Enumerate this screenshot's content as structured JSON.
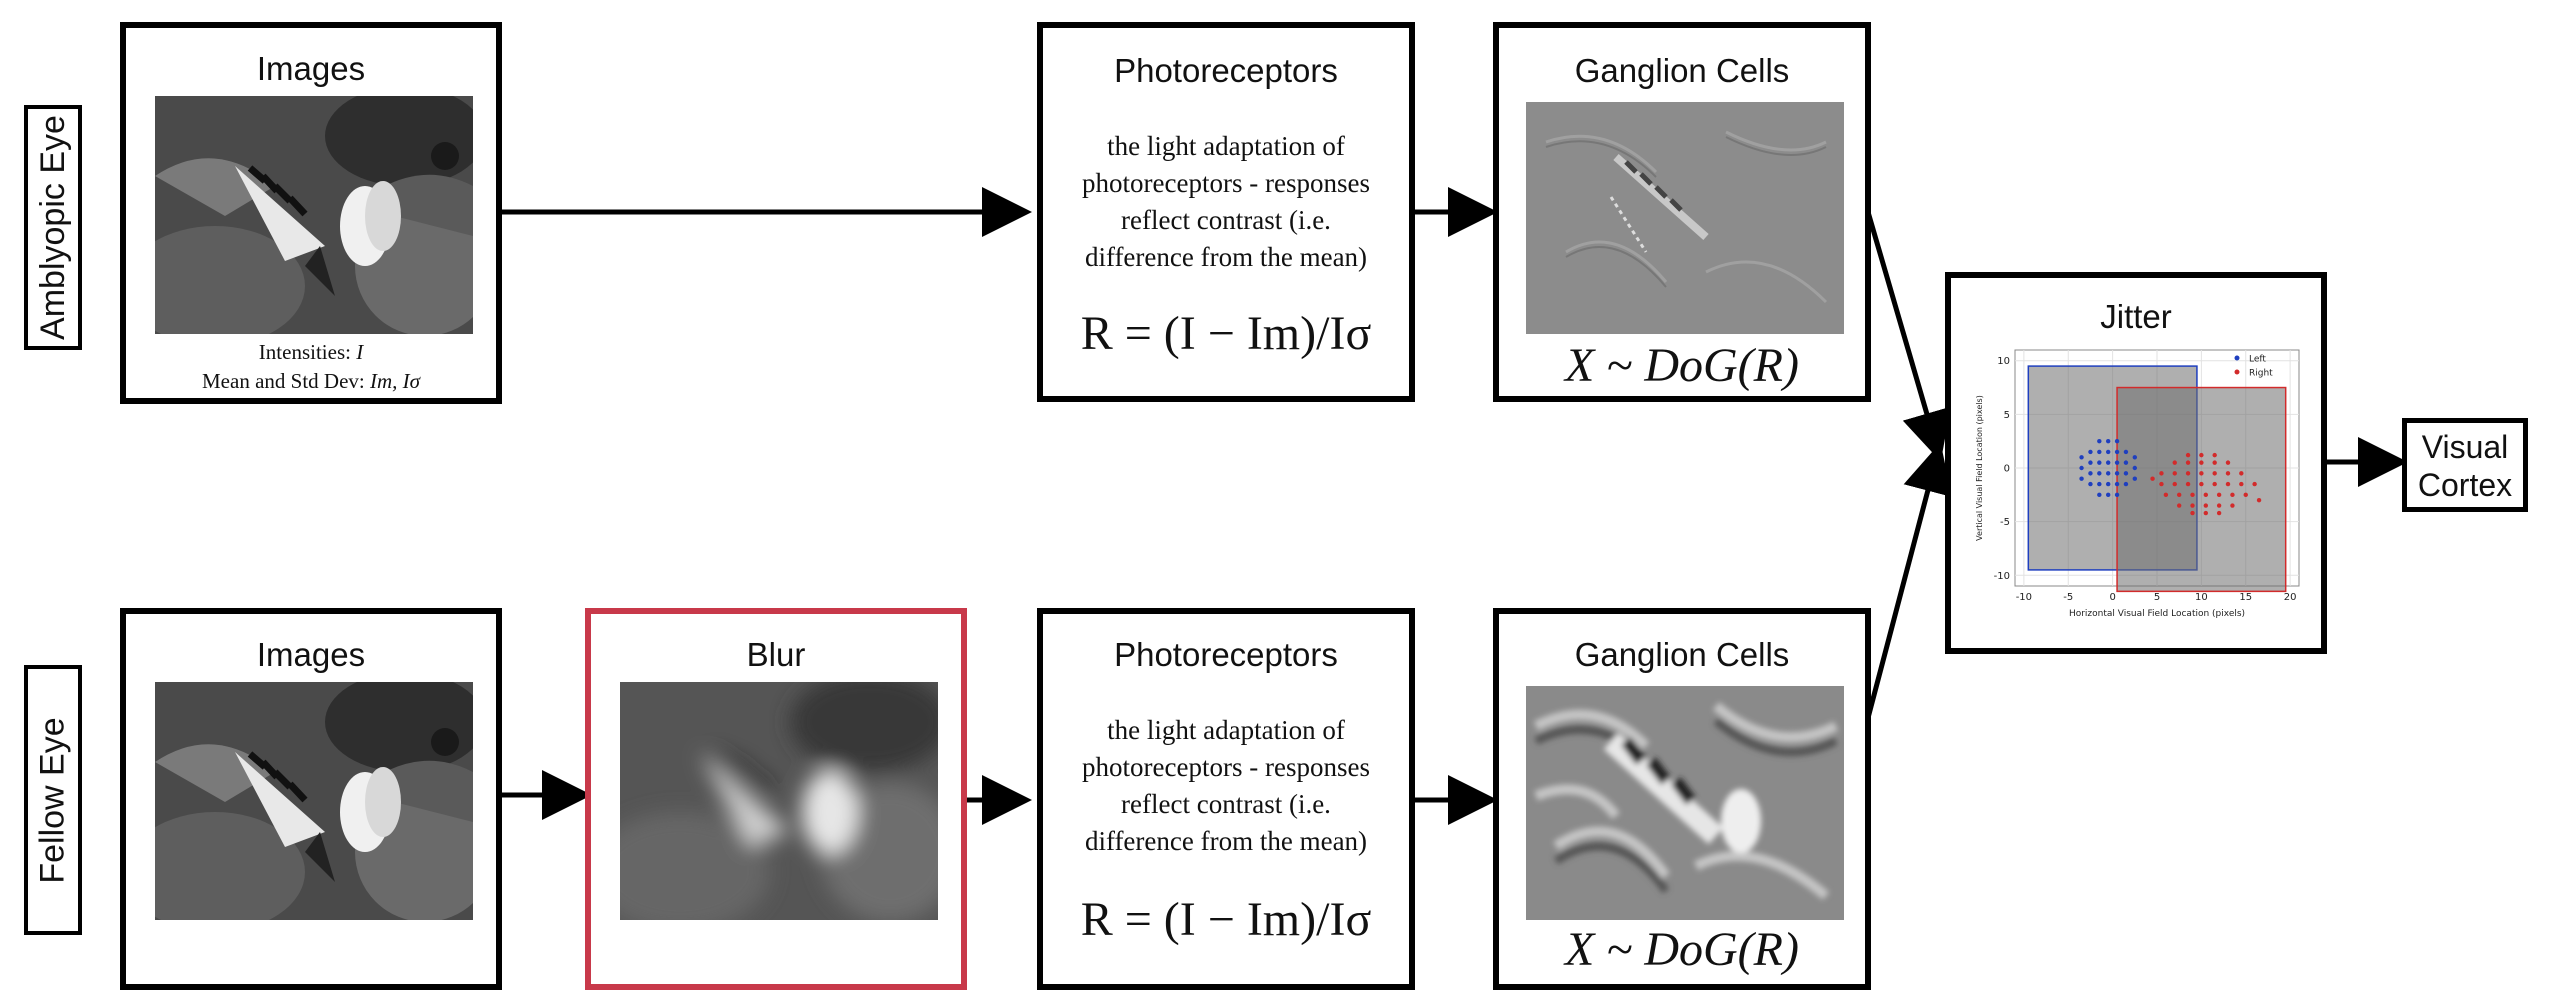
{
  "rows": {
    "amblyopic": {
      "eye_label": "Amblyopic Eye",
      "images_title": "Images",
      "intensities_label": "Intensities:",
      "intensities_symbol": "I",
      "mean_std_label": "Mean and Std Dev:",
      "mean_std_symbol": "Im, Iσ",
      "photoreceptors_title": "Photoreceptors",
      "photoreceptors_desc": [
        "the light adaptation of",
        "photoreceptors - responses",
        "reflect contrast (i.e.",
        "difference from the mean)"
      ],
      "photoreceptors_formula": "R = (I − Im)/Iσ",
      "ganglion_title": "Ganglion Cells",
      "ganglion_formula": "X ~ DoG(R)"
    },
    "fellow": {
      "eye_label": "Fellow Eye",
      "images_title": "Images",
      "blur_title": "Blur",
      "photoreceptors_title": "Photoreceptors",
      "photoreceptors_desc": [
        "the light adaptation of",
        "photoreceptors - responses",
        "reflect contrast (i.e.",
        "difference from the mean)"
      ],
      "photoreceptors_formula": "R = (I − Im)/Iσ",
      "ganglion_title": "Ganglion Cells",
      "ganglion_formula": "X ~ DoG(R)"
    }
  },
  "jitter": {
    "title": "Jitter",
    "chart_data": {
      "type": "scatter",
      "xlabel": "Horizontal Visual Field Location (pixels)",
      "ylabel": "Vertical Visual Field Location (pixels)",
      "xlim": [
        -11,
        21
      ],
      "ylim": [
        -11,
        11
      ],
      "xticks": [
        -10,
        -5,
        0,
        5,
        10,
        15,
        20
      ],
      "yticks": [
        -10,
        -5,
        0,
        5,
        10
      ],
      "grid": true,
      "legend_position": "top-right",
      "series": [
        {
          "name": "Left",
          "color": "#1f3fbf",
          "rect": {
            "x0": -9.5,
            "y0": -9.5,
            "x1": 9.5,
            "y1": 9.5
          },
          "points": [
            [
              -2.5,
              1.5
            ],
            [
              -1.5,
              1.5
            ],
            [
              -0.5,
              1.5
            ],
            [
              0.5,
              1.5
            ],
            [
              1.5,
              1.5
            ],
            [
              -2.5,
              0.5
            ],
            [
              -1.5,
              0.5
            ],
            [
              -0.5,
              0.5
            ],
            [
              0.5,
              0.5
            ],
            [
              1.5,
              0.5
            ],
            [
              -2.5,
              -0.5
            ],
            [
              -1.5,
              -0.5
            ],
            [
              -0.5,
              -0.5
            ],
            [
              0.5,
              -0.5
            ],
            [
              1.5,
              -0.5
            ],
            [
              -2.5,
              -1.5
            ],
            [
              -1.5,
              -1.5
            ],
            [
              -0.5,
              -1.5
            ],
            [
              0.5,
              -1.5
            ],
            [
              1.5,
              -1.5
            ],
            [
              -1.5,
              2.5
            ],
            [
              -0.5,
              2.5
            ],
            [
              0.5,
              2.5
            ],
            [
              -1.5,
              -2.5
            ],
            [
              -0.5,
              -2.5
            ],
            [
              0.5,
              -2.5
            ],
            [
              -3.5,
              0.0
            ],
            [
              2.5,
              0.0
            ],
            [
              2.5,
              1.0
            ],
            [
              -3.5,
              1.0
            ],
            [
              2.5,
              -1.0
            ],
            [
              -3.5,
              -1.0
            ]
          ]
        },
        {
          "name": "Right",
          "color": "#d22b2b",
          "rect": {
            "x0": 0.5,
            "y0": -11.5,
            "x1": 19.5,
            "y1": 7.5
          },
          "points": [
            [
              5.5,
              -1.5
            ],
            [
              7.0,
              -1.5
            ],
            [
              8.5,
              -1.5
            ],
            [
              10.0,
              -1.5
            ],
            [
              11.5,
              -1.5
            ],
            [
              13.0,
              -1.5
            ],
            [
              14.5,
              -1.5
            ],
            [
              5.5,
              -0.5
            ],
            [
              7.0,
              -0.5
            ],
            [
              8.5,
              -0.5
            ],
            [
              10.0,
              -0.5
            ],
            [
              11.5,
              -0.5
            ],
            [
              13.0,
              -0.5
            ],
            [
              14.5,
              -0.5
            ],
            [
              6.0,
              -2.5
            ],
            [
              7.5,
              -2.5
            ],
            [
              9.0,
              -2.5
            ],
            [
              10.5,
              -2.5
            ],
            [
              12.0,
              -2.5
            ],
            [
              13.5,
              -2.5
            ],
            [
              15.0,
              -2.5
            ],
            [
              7.0,
              0.5
            ],
            [
              8.5,
              0.5
            ],
            [
              10.0,
              0.5
            ],
            [
              11.5,
              0.5
            ],
            [
              13.0,
              0.5
            ],
            [
              7.5,
              -3.5
            ],
            [
              9.0,
              -3.5
            ],
            [
              10.5,
              -3.5
            ],
            [
              12.0,
              -3.5
            ],
            [
              13.5,
              -3.5
            ],
            [
              8.5,
              1.2
            ],
            [
              10.0,
              1.2
            ],
            [
              11.5,
              1.2
            ],
            [
              9.0,
              -4.2
            ],
            [
              10.5,
              -4.2
            ],
            [
              12.0,
              -4.2
            ],
            [
              16.0,
              -1.5
            ],
            [
              16.5,
              -3.0
            ],
            [
              4.5,
              -1.0
            ]
          ]
        }
      ]
    }
  },
  "cortex": {
    "line1": "Visual",
    "line2": "Cortex"
  },
  "colors": {
    "border": "#000000",
    "blur_border": "#c8394a",
    "left": "#1f3fbf",
    "right": "#d22b2b"
  }
}
